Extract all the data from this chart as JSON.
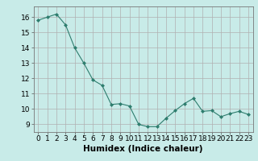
{
  "x": [
    0,
    1,
    2,
    3,
    4,
    5,
    6,
    7,
    8,
    9,
    10,
    11,
    12,
    13,
    14,
    15,
    16,
    17,
    18,
    19,
    20,
    21,
    22,
    23
  ],
  "y": [
    15.8,
    16.0,
    16.2,
    15.5,
    14.0,
    13.0,
    11.9,
    11.55,
    10.3,
    10.35,
    10.2,
    9.0,
    8.85,
    8.85,
    9.4,
    9.9,
    10.35,
    10.7,
    9.85,
    9.9,
    9.5,
    9.7,
    9.85,
    9.65
  ],
  "line_color": "#2e7d6e",
  "marker": "D",
  "marker_size": 2.0,
  "bg_color": "#c8ebe8",
  "grid_major_color": "#b0b0b0",
  "grid_minor_color": "#d0d0d0",
  "xlabel": "Humidex (Indice chaleur)",
  "xlabel_fontsize": 7.5,
  "tick_fontsize": 6.5,
  "ylim": [
    8.5,
    16.7
  ],
  "xlim": [
    -0.5,
    23.5
  ],
  "yticks": [
    9,
    10,
    11,
    12,
    13,
    14,
    15,
    16
  ],
  "xticks": [
    0,
    1,
    2,
    3,
    4,
    5,
    6,
    7,
    8,
    9,
    10,
    11,
    12,
    13,
    14,
    15,
    16,
    17,
    18,
    19,
    20,
    21,
    22,
    23
  ]
}
